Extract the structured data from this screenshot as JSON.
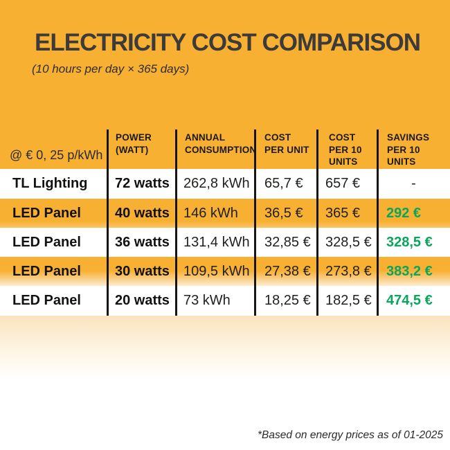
{
  "chart_data": {
    "type": "table",
    "title": "ELECTRICITY COST COMPARISON",
    "subtitle": "(10 hours per day × 365 days)",
    "rate_label": "@ € 0, 25 p/kWh",
    "columns": [
      "POWER\n(WATT)",
      "ANNUAL\nCONSUMPTION",
      "COST\nPER UNIT",
      "COST\nPER 10\nUNITS",
      "SAVINGS\nPER 10\nUNITS"
    ],
    "rows": [
      {
        "name": "TL Lighting",
        "power": "72 watts",
        "consumption": "262,8 kWh",
        "cost_per_unit": "65,7 €",
        "cost_per_10_units": "657 €",
        "savings": "-"
      },
      {
        "name": "LED Panel",
        "power": "40 watts",
        "consumption": "146 kWh",
        "cost_per_unit": "36,5 €",
        "cost_per_10_units": "365 €",
        "savings": "292 €"
      },
      {
        "name": "LED Panel",
        "power": "36 watts",
        "consumption": "131,4 kWh",
        "cost_per_unit": "32,85 €",
        "cost_per_10_units": "328,5 €",
        "savings": "328,5 €"
      },
      {
        "name": "LED Panel",
        "power": "30 watts",
        "consumption": "109,5 kWh",
        "cost_per_unit": "27,38 €",
        "cost_per_10_units": "273,8 €",
        "savings": "383,2 €"
      },
      {
        "name": "LED Panel",
        "power": "20 watts",
        "consumption": "73 kWh",
        "cost_per_unit": "18,25 €",
        "cost_per_10_units": "182,5 €",
        "savings": "474,5 €"
      }
    ],
    "footnote": "*Based on energy prices as of 01-2025",
    "colors": {
      "background_orange": "#F8B032",
      "savings_green": "#0AA55C",
      "line_black": "#161514",
      "title_text": "#3C3B3A",
      "body_text": "#201F1D"
    }
  }
}
